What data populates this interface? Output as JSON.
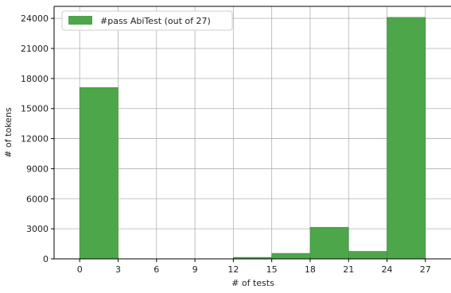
{
  "chart_data": {
    "type": "bar",
    "title": "",
    "xlabel": "# of tests",
    "ylabel": "# of tokens",
    "legend": {
      "label": "#pass AbiTest (out of 27)",
      "placement": "top-left"
    },
    "bar_color": "#4ea64b",
    "bin_edges": [
      0,
      3,
      6,
      9,
      12,
      15,
      18,
      21,
      24,
      27
    ],
    "values": [
      17100,
      0,
      0,
      0,
      150,
      550,
      3150,
      750,
      24100
    ],
    "xlim": [
      -2,
      29
    ],
    "ylim": [
      0,
      25200
    ],
    "x_ticks": [
      0,
      3,
      6,
      9,
      12,
      15,
      18,
      21,
      24,
      27
    ],
    "y_ticks": [
      0,
      3000,
      6000,
      9000,
      12000,
      15000,
      18000,
      21000,
      24000
    ],
    "grid": true
  }
}
